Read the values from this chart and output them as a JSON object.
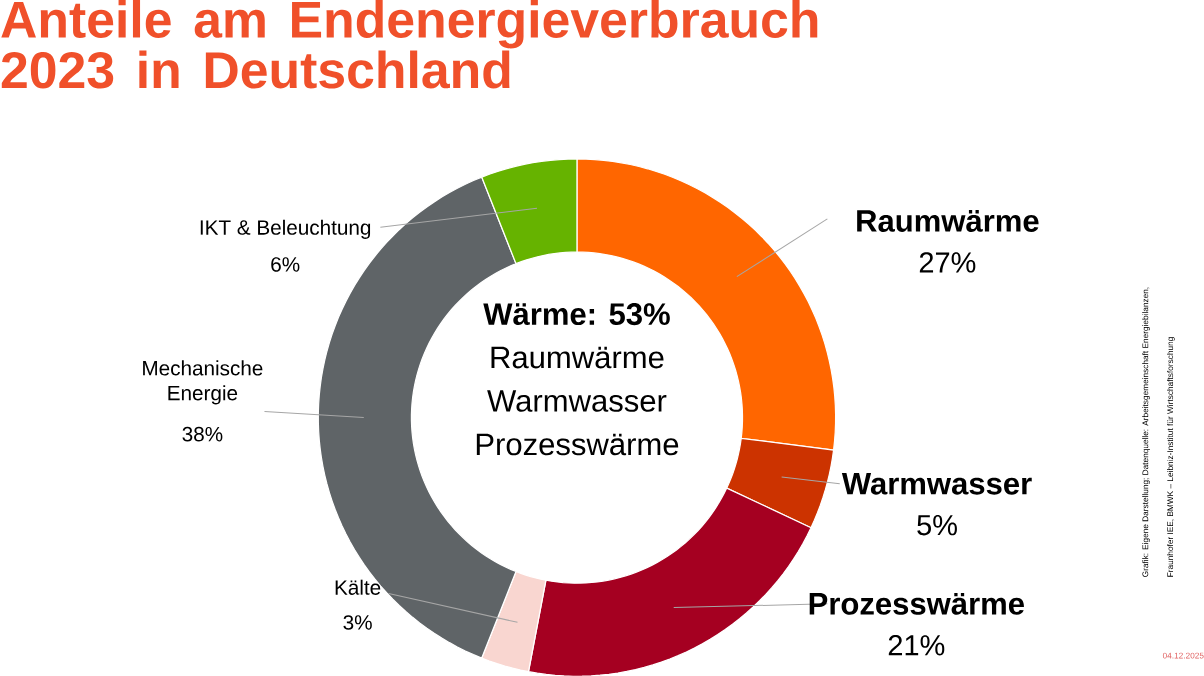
{
  "chart_data": {
    "type": "donut",
    "title": "Anteile am Endenergieverbrauch 2023 in Deutschland",
    "categories": [
      "Raumwärme",
      "Warmwasser",
      "Prozesswärme",
      "Kälte",
      "Mechanische Energie",
      "IKT & Beleuchtung"
    ],
    "values": [
      27,
      5,
      21,
      3,
      38,
      6
    ],
    "value_labels": [
      "27%",
      "5%",
      "21%",
      "3%",
      "38%",
      "6%"
    ],
    "colors": [
      "#ff6600",
      "#cc3300",
      "#a50021",
      "#f9d6d0",
      "#5f6467",
      "#66b300"
    ],
    "annotations": [
      "Wärme: 53%",
      "Raumwärme",
      "Warmwasser",
      "Prozesswärme",
      "Grafik: Eigene Darstellung; Datenquelle: Arbeitsgemeinschaft Energiebilanzen,",
      "Fraunhofer IEE, BMWK – Leibniz-Institut für Wirtschaftsforschung",
      "04.12.2025"
    ]
  }
}
